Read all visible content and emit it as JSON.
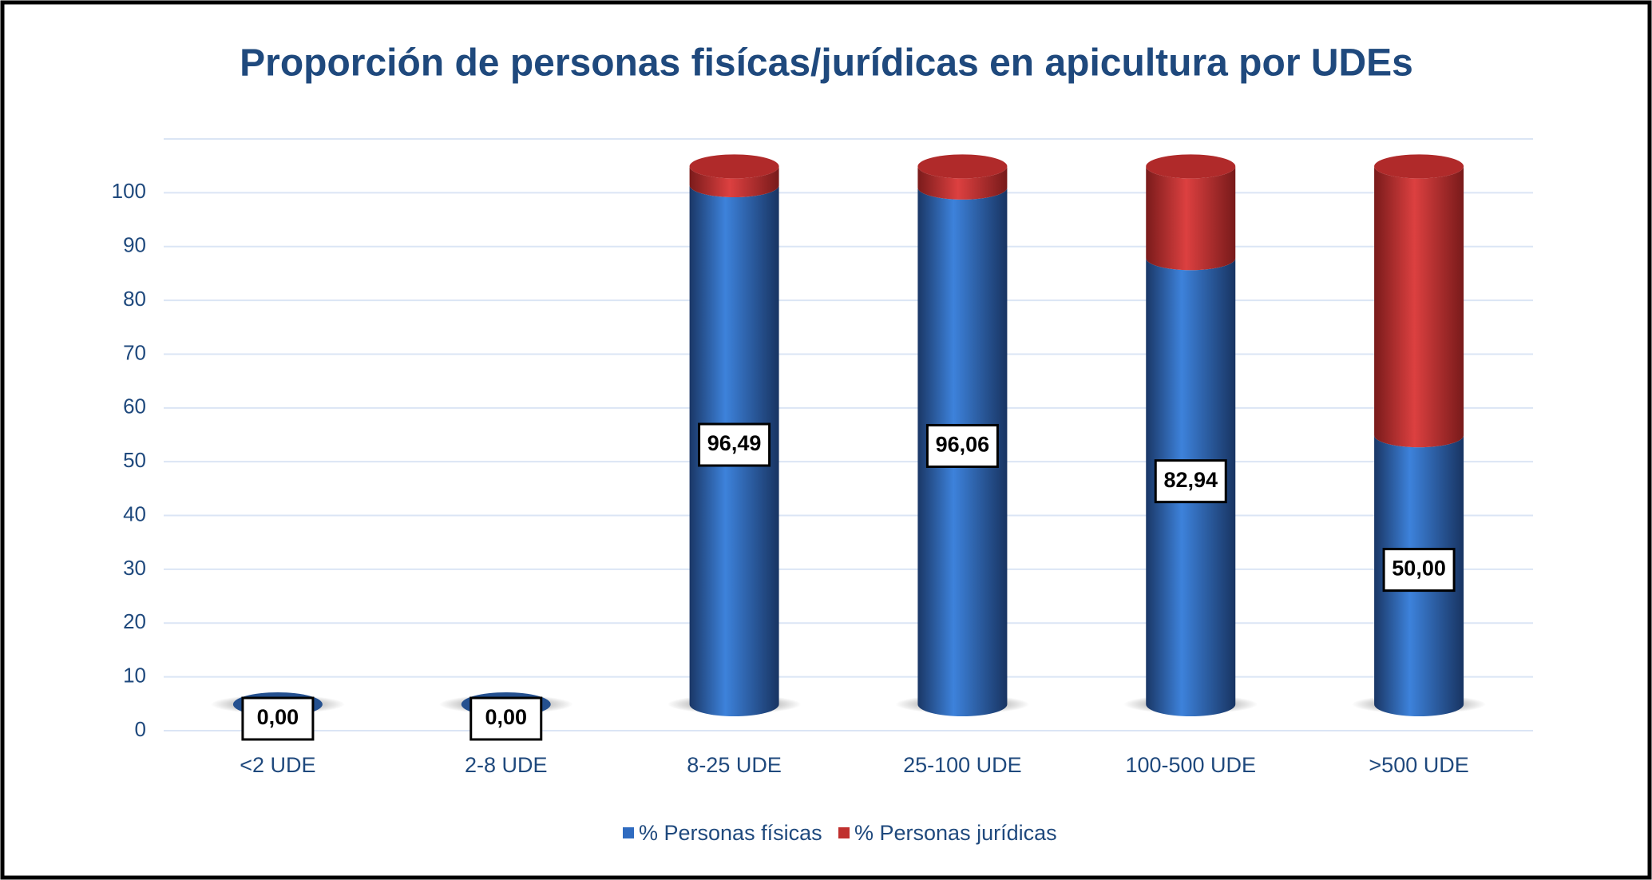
{
  "chart_data": {
    "type": "bar",
    "stacked": true,
    "title": "Proporción de personas fisícas/jurídicas  en apicultura por UDEs",
    "categories": [
      "<2 UDE",
      "2-8 UDE",
      "8-25 UDE",
      "25-100 UDE",
      "100-500 UDE",
      ">500 UDE"
    ],
    "series": [
      {
        "name": "% Personas físicas",
        "color": "#2f6bc0",
        "values": [
          0,
          0,
          96.49,
          96.06,
          82.94,
          50.0
        ],
        "value_labels": [
          "0,00",
          "0,00",
          "96,49",
          "96,06",
          "82,94",
          "50,00"
        ]
      },
      {
        "name": "% Personas jurídicas",
        "color": "#c0302e",
        "values": [
          0,
          0,
          3.51,
          3.94,
          17.06,
          50.0
        ]
      }
    ],
    "ylim": [
      0,
      110
    ],
    "yticks": [
      0,
      10,
      20,
      30,
      40,
      50,
      60,
      70,
      80,
      90,
      100
    ],
    "grid": true,
    "legend": "bottom"
  }
}
